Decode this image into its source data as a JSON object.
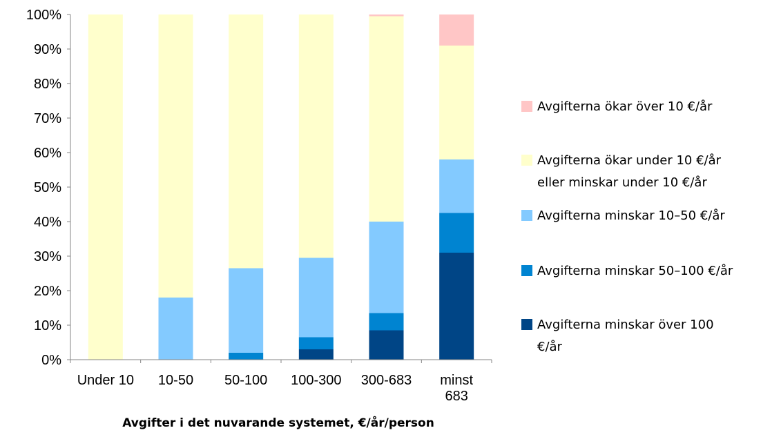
{
  "chart_data": {
    "type": "bar",
    "stacked": true,
    "percent": true,
    "title": "",
    "xlabel": "Avgifter i det nuvarande systemet, €/år/person",
    "ylabel": "",
    "ylim": [
      0,
      100
    ],
    "y_ticks": [
      "0%",
      "10%",
      "20%",
      "30%",
      "40%",
      "50%",
      "60%",
      "70%",
      "80%",
      "90%",
      "100%"
    ],
    "grid": false,
    "legend_position": "right",
    "categories": [
      [
        "Under 10"
      ],
      [
        "10-50"
      ],
      [
        "50-100"
      ],
      [
        "100-300"
      ],
      [
        "300-683"
      ],
      [
        "minst",
        "683"
      ]
    ],
    "series": [
      {
        "name": [
          "Avgifterna minskar över 100",
          "€/år"
        ],
        "color": "#004586",
        "values": [
          0,
          0,
          0,
          3,
          8.5,
          31
        ]
      },
      {
        "name": [
          "Avgifterna minskar 50–100 €/år"
        ],
        "color": "#0084D1",
        "values": [
          0,
          0,
          2,
          3.5,
          5,
          11.5
        ]
      },
      {
        "name": [
          "Avgifterna minskar 10–50 €/år"
        ],
        "color": "#83CAFF",
        "values": [
          0,
          18,
          24.5,
          23,
          26.5,
          15.5
        ]
      },
      {
        "name": [
          "Avgifterna ökar under 10 €/år",
          "eller minskar under 10 €/år"
        ],
        "color": "#FFFFCC",
        "values": [
          100,
          82,
          73.5,
          70.5,
          59.5,
          33
        ]
      },
      {
        "name": [
          "Avgifterna ökar över 10 €/år"
        ],
        "color": "#FFC6C6",
        "values": [
          0,
          0,
          0,
          0,
          0.5,
          9
        ]
      }
    ],
    "legend_order_top_to_bottom": [
      4,
      3,
      2,
      1,
      0
    ]
  }
}
